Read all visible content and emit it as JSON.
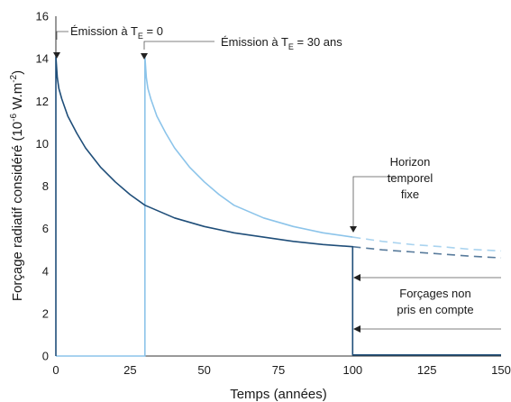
{
  "chart_data": {
    "type": "line",
    "xlabel": "Temps (années)",
    "ylabel_main": "Forçage radiatif considéré (10",
    "ylabel_sup": "-6",
    "ylabel_unit": " W.m",
    "ylabel_sup2": "-2",
    "ylabel_close": ")",
    "xlim": [
      0,
      150
    ],
    "ylim": [
      0,
      16
    ],
    "xticks": [
      "0",
      "25",
      "50",
      "75",
      "100",
      "125",
      "150"
    ],
    "yticks": [
      "0",
      "2",
      "4",
      "6",
      "8",
      "10",
      "12",
      "14",
      "16"
    ],
    "grid": false,
    "colors": {
      "dark": "#1f4e79",
      "light": "#8cc4ea",
      "axis": "#333333"
    },
    "series": [
      {
        "color": "#1f4e79",
        "points": [
          [
            0,
            0
          ],
          [
            0,
            14.1
          ],
          [
            0.5,
            13.1
          ],
          [
            1,
            12.6
          ],
          [
            2,
            12.1
          ],
          [
            4,
            11.3
          ],
          [
            7,
            10.5
          ],
          [
            10,
            9.8
          ],
          [
            15,
            8.9
          ],
          [
            20,
            8.2
          ],
          [
            25,
            7.6
          ],
          [
            30,
            7.1
          ],
          [
            40,
            6.5
          ],
          [
            50,
            6.1
          ],
          [
            60,
            5.8
          ],
          [
            70,
            5.6
          ],
          [
            80,
            5.4
          ],
          [
            90,
            5.25
          ],
          [
            100,
            5.15
          ],
          [
            100,
            0.05
          ],
          [
            150,
            0.05
          ]
        ],
        "dashed": [
          [
            100,
            5.15
          ],
          [
            110,
            5.0
          ],
          [
            120,
            4.9
          ],
          [
            130,
            4.8
          ],
          [
            140,
            4.7
          ],
          [
            150,
            4.62
          ]
        ]
      },
      {
        "color": "#8cc4ea",
        "points": [
          [
            0,
            0
          ],
          [
            30,
            0
          ],
          [
            30,
            14.1
          ],
          [
            30.5,
            13.1
          ],
          [
            31,
            12.6
          ],
          [
            32,
            12.1
          ],
          [
            34,
            11.3
          ],
          [
            37,
            10.5
          ],
          [
            40,
            9.8
          ],
          [
            45,
            8.9
          ],
          [
            50,
            8.2
          ],
          [
            55,
            7.6
          ],
          [
            60,
            7.1
          ],
          [
            70,
            6.5
          ],
          [
            80,
            6.1
          ],
          [
            90,
            5.8
          ],
          [
            100,
            5.6
          ]
        ],
        "dashed": [
          [
            100,
            5.6
          ],
          [
            110,
            5.4
          ],
          [
            120,
            5.25
          ],
          [
            130,
            5.15
          ],
          [
            140,
            5.02
          ],
          [
            150,
            4.95
          ]
        ]
      }
    ],
    "annotations": {
      "emission0_prefix": "Émission à T",
      "emission0_sub": "E",
      "emission0_suffix": " = 0",
      "emission30_prefix": "Émission à T",
      "emission30_sub": "E",
      "emission30_suffix": " = 30 ans",
      "horizon_lines": [
        "Horizon",
        "temporel",
        "fixe"
      ],
      "forcages_lines": [
        "Forçages non",
        "pris en compte"
      ]
    }
  }
}
